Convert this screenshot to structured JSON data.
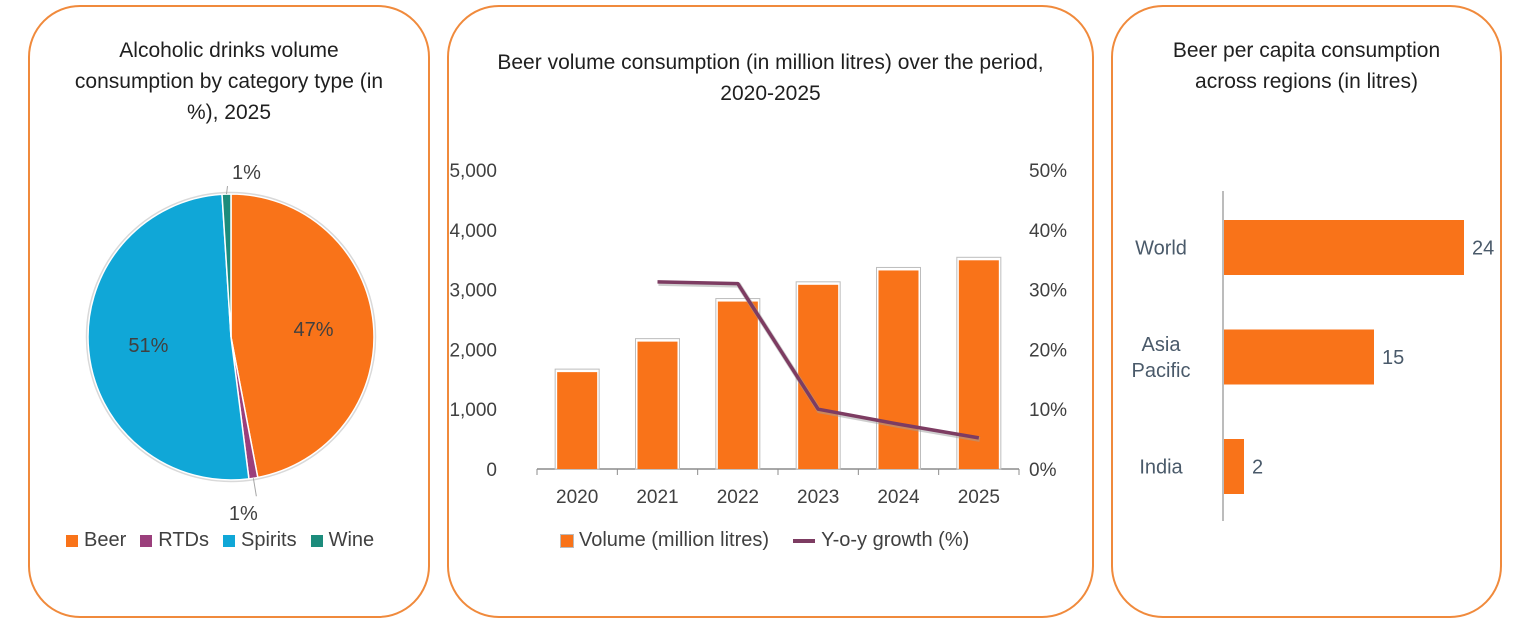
{
  "pie_panel": {
    "title": "Alcoholic drinks volume consumption by category type (in %), 2025"
  },
  "combo_panel": {
    "title": "Beer volume consumption (in million litres) over the period, 2020-2025",
    "legend_volume": "Volume (million litres)",
    "legend_growth": "Y-o-y growth (%)"
  },
  "hbar_panel": {
    "title": "Beer per capita consumption across regions (in litres)"
  },
  "chart_data": [
    {
      "type": "pie",
      "title": "Alcoholic drinks volume consumption by category type (in %), 2025",
      "categories": [
        "Beer",
        "RTDs",
        "Spirits",
        "Wine"
      ],
      "values": [
        47,
        1,
        51,
        1
      ],
      "labels": [
        "47%",
        "1%",
        "51%",
        "1%"
      ],
      "colors": [
        "#f97319",
        "#9b3f7c",
        "#10a7d7",
        "#1c8c7c"
      ],
      "legend_position": "bottom"
    },
    {
      "type": "bar",
      "title": "Beer volume consumption (in million litres) over the period, 2020-2025",
      "categories": [
        "2020",
        "2021",
        "2022",
        "2023",
        "2024",
        "2025"
      ],
      "series": [
        {
          "name": "Volume (million litres)",
          "type": "bar",
          "axis": "left",
          "values": [
            1620,
            2130,
            2800,
            3080,
            3320,
            3490
          ],
          "color": "#f97319"
        },
        {
          "name": "Y-o-y growth (%)",
          "type": "line",
          "axis": "right",
          "values": [
            null,
            31.3,
            31.0,
            10.0,
            7.5,
            5.2
          ],
          "color": "#7d3c62"
        }
      ],
      "ylim": [
        0,
        5000
      ],
      "y2lim": [
        0,
        50
      ],
      "yticks": [
        "0",
        "1,000",
        "2,000",
        "3,000",
        "4,000",
        "5,000"
      ],
      "y2ticks": [
        "0%",
        "10%",
        "20%",
        "30%",
        "40%",
        "50%"
      ],
      "legend_position": "bottom",
      "grid": false
    },
    {
      "type": "bar",
      "orientation": "horizontal",
      "title": "Beer per capita consumption across regions (in litres)",
      "categories": [
        "World",
        "Asia Pacific",
        "India"
      ],
      "category_lines": [
        [
          "World"
        ],
        [
          "Asia",
          "Pacific"
        ],
        [
          "India"
        ]
      ],
      "values": [
        24,
        15,
        2
      ],
      "labels": [
        "24",
        "15",
        "2"
      ],
      "xlim": [
        0,
        24
      ],
      "color": "#f97319",
      "label_color": "#4a5a6a"
    }
  ]
}
